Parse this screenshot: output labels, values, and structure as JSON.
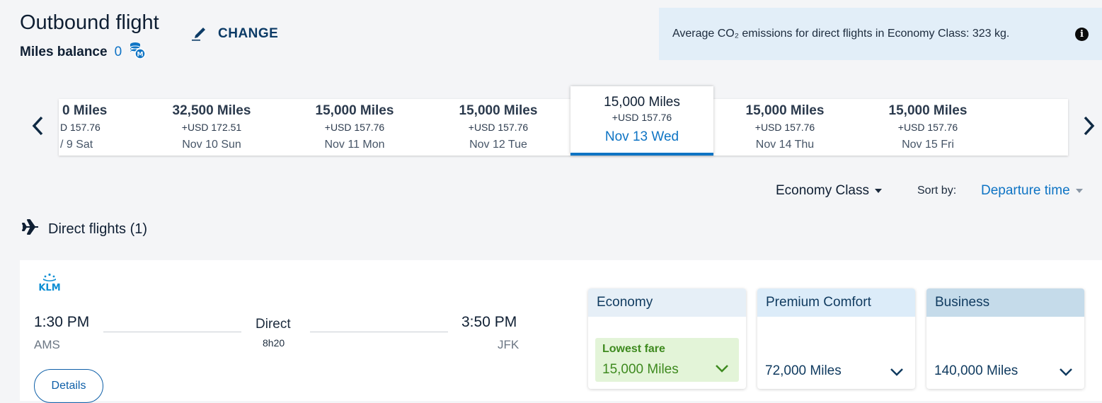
{
  "header": {
    "title": "Outbound flight",
    "change_label": "CHANGE",
    "miles_label": "Miles balance",
    "miles_value": "0",
    "co2_text": "Average CO₂ emissions for direct flights in Economy Class: 323 kg.",
    "info_glyph": "i"
  },
  "date_bar": {
    "days": [
      {
        "miles": "0 Miles",
        "usd": "D 157.76",
        "date": "/ 9 Sat"
      },
      {
        "miles": "32,500 Miles",
        "usd": "+USD 172.51",
        "date": "Nov 10 Sun"
      },
      {
        "miles": "15,000 Miles",
        "usd": "+USD 157.76",
        "date": "Nov 11 Mon"
      },
      {
        "miles": "15,000 Miles",
        "usd": "+USD 157.76",
        "date": "Nov 12 Tue"
      },
      {
        "miles": "15,000 Miles",
        "usd": "+USD 157.76",
        "date": "Nov 13 Wed",
        "selected": true
      },
      {
        "miles": "15,000 Miles",
        "usd": "+USD 157.76",
        "date": "Nov 14 Thu"
      },
      {
        "miles": "15,000 Miles",
        "usd": "+USD 157.76",
        "date": "Nov 15 Fri"
      }
    ]
  },
  "filters": {
    "cabin_value": "Economy Class",
    "sort_label": "Sort by:",
    "sort_value": "Departure time"
  },
  "results": {
    "section_title": "Direct flights (1)",
    "flight": {
      "airline": "KLM",
      "departure_time": "1:30 PM",
      "departure_airport": "AMS",
      "stops_label": "Direct",
      "duration": "8h20",
      "arrival_time": "3:50 PM",
      "arrival_airport": "JFK",
      "details_label": "Details"
    },
    "fares": [
      {
        "name": "Economy",
        "tag": "Lowest fare",
        "price": "15,000 Miles",
        "header_color": "#e6eff7"
      },
      {
        "name": "Premium Comfort",
        "price": "72,000 Miles",
        "header_color": "#dcecf9"
      },
      {
        "name": "Business",
        "price": "140,000 Miles",
        "header_color": "#c5dbea"
      }
    ]
  },
  "colors": {
    "accent": "#0e74c4",
    "lowest_fare_bg": "#e3f4d8",
    "lowest_fare_text": "#3e8a1f"
  }
}
